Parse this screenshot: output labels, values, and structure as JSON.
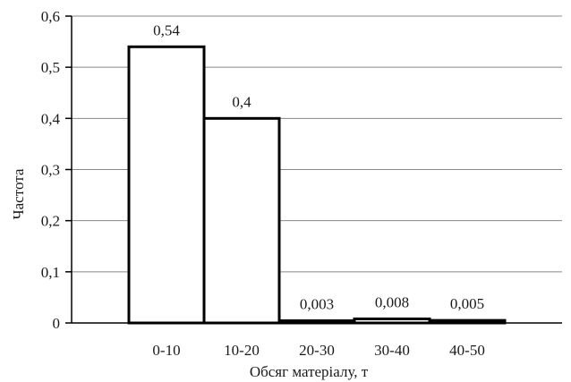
{
  "chart_data": {
    "type": "bar",
    "categories": [
      "0-10",
      "10-20",
      "20-30",
      "30-40",
      "40-50"
    ],
    "values": [
      0.54,
      0.4,
      0.003,
      0.008,
      0.005
    ],
    "data_labels": [
      "0,54",
      "0,4",
      "0,003",
      "0,008",
      "0,005"
    ],
    "ylabel": "Частота",
    "xlabel": "Обсяг матеріалу, т",
    "ylim": [
      0,
      0.6
    ],
    "y_ticks": [
      0,
      0.1,
      0.2,
      0.3,
      0.4,
      0.5,
      0.6
    ],
    "y_tick_labels": [
      "0",
      "0,1",
      "0,2",
      "0,3",
      "0,4",
      "0,5",
      "0,6"
    ],
    "grid": true,
    "legend": "none",
    "colors": {
      "bar_fill": "#ffffff",
      "bar_stroke": "#000000",
      "grid": "#888888"
    }
  }
}
